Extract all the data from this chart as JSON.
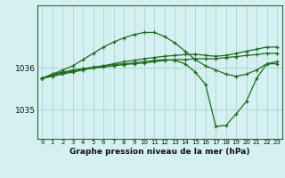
{
  "title": "Graphe pression niveau de la mer (hPa)",
  "bg_color": "#d4f0f0",
  "grid_color": "#b0d8d8",
  "line_color": "#1e6b1e",
  "x_ticks": [
    0,
    1,
    2,
    3,
    4,
    5,
    6,
    7,
    8,
    9,
    10,
    11,
    12,
    13,
    14,
    15,
    16,
    17,
    18,
    19,
    20,
    21,
    22,
    23
  ],
  "ylim": [
    1034.3,
    1037.5
  ],
  "yticks": [
    1035,
    1036
  ],
  "series": [
    {
      "x": [
        0,
        1,
        2,
        3,
        4,
        5,
        6,
        7,
        8,
        9,
        10,
        11,
        12,
        13,
        14,
        15,
        16,
        17,
        18,
        19,
        20,
        21,
        22,
        23
      ],
      "y": [
        1035.75,
        1035.85,
        1035.9,
        1035.95,
        1035.98,
        1036.0,
        1036.02,
        1036.05,
        1036.08,
        1036.1,
        1036.12,
        1036.15,
        1036.18,
        1036.2,
        1036.2,
        1036.22,
        1036.22,
        1036.22,
        1036.25,
        1036.27,
        1036.3,
        1036.32,
        1036.35,
        1036.35
      ]
    },
    {
      "x": [
        0,
        1,
        2,
        3,
        4,
        5,
        6,
        7,
        8,
        9,
        10,
        11,
        12,
        13,
        14,
        15,
        16,
        17,
        18,
        19,
        20,
        21,
        22,
        23
      ],
      "y": [
        1035.75,
        1035.85,
        1035.95,
        1036.05,
        1036.2,
        1036.35,
        1036.5,
        1036.62,
        1036.72,
        1036.8,
        1036.85,
        1036.85,
        1036.75,
        1036.6,
        1036.4,
        1036.2,
        1036.05,
        1035.95,
        1035.85,
        1035.8,
        1035.85,
        1035.95,
        1036.1,
        1036.15
      ]
    },
    {
      "x": [
        0,
        1,
        2,
        3,
        4,
        5,
        6,
        7,
        8,
        9,
        10,
        11,
        12,
        13,
        14,
        15,
        16,
        17,
        18,
        19,
        20,
        21,
        22,
        23
      ],
      "y": [
        1035.75,
        1035.8,
        1035.85,
        1035.9,
        1035.95,
        1036.0,
        1036.05,
        1036.1,
        1036.15,
        1036.18,
        1036.22,
        1036.25,
        1036.28,
        1036.3,
        1036.32,
        1036.33,
        1036.3,
        1036.28,
        1036.3,
        1036.35,
        1036.4,
        1036.45,
        1036.5,
        1036.5
      ]
    },
    {
      "x": [
        0,
        1,
        2,
        3,
        4,
        5,
        6,
        7,
        8,
        9,
        10,
        11,
        12,
        13,
        14,
        15,
        16,
        17,
        18,
        19,
        20,
        21,
        22,
        23
      ],
      "y": [
        1035.75,
        1035.82,
        1035.88,
        1035.92,
        1035.98,
        1036.02,
        1036.05,
        1036.08,
        1036.1,
        1036.12,
        1036.15,
        1036.18,
        1036.2,
        1036.18,
        1036.1,
        1035.9,
        1035.6,
        1034.6,
        1034.62,
        1034.9,
        1035.2,
        1035.75,
        1036.1,
        1036.1
      ]
    }
  ]
}
